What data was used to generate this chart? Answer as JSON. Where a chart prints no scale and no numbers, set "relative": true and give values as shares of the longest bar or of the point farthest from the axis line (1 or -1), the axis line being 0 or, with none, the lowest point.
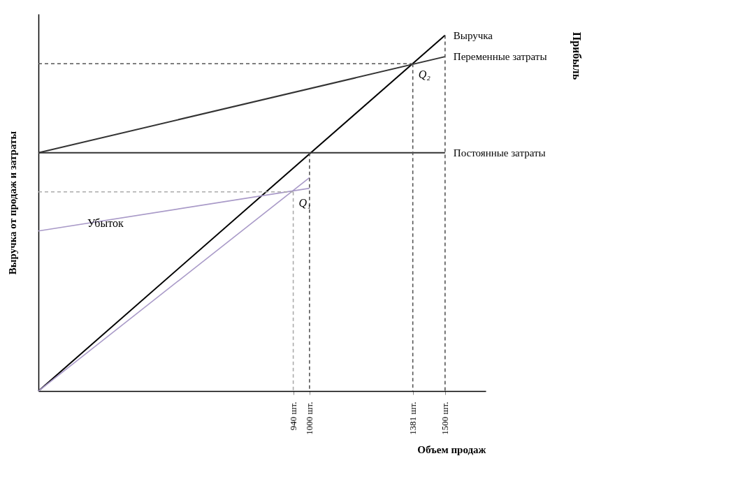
{
  "chart_data": {
    "type": "line",
    "relative": true,
    "xlabel": "Объем продаж",
    "ylabel": "Выручка от продаж и затраты",
    "xlim": [
      0,
      1650
    ],
    "xticks": [
      {
        "value": 940,
        "label": "940 шт."
      },
      {
        "value": 1000,
        "label": "1000 шт."
      },
      {
        "value": 1381,
        "label": "1381 шт."
      },
      {
        "value": 1500,
        "label": "1500 шт."
      }
    ],
    "grid": false,
    "marker": "none",
    "series": [
      {
        "name": "Выручка",
        "color": "#000000",
        "x": [
          0,
          1500
        ],
        "values": [
          0,
          1
        ]
      },
      {
        "name": "Переменные затраты",
        "color": "#333333",
        "x": [
          0,
          1500
        ],
        "values": [
          0.67,
          0.94
        ]
      },
      {
        "name": "Постоянные затраты",
        "color": "#333333",
        "x": [
          0,
          1500
        ],
        "values": [
          0.67,
          0.67
        ]
      },
      {
        "color": "#a99ac8",
        "x": [
          0,
          1000
        ],
        "values": [
          0,
          0.6
        ]
      },
      {
        "color": "#a99ac8",
        "x": [
          0,
          1000
        ],
        "values": [
          0.45,
          0.57
        ]
      },
      {
        "color": "#555555",
        "line_style": "dashed",
        "x": [
          0,
          1381
        ],
        "values": [
          0.92,
          0.92
        ]
      },
      {
        "color": "#555555",
        "line_style": "dashed",
        "x": [
          1381,
          1381
        ],
        "values": [
          0.92,
          0
        ]
      },
      {
        "color": "#555555",
        "line_style": "dashed",
        "x": [
          1000,
          1000
        ],
        "values": [
          0.67,
          0
        ]
      },
      {
        "color": "#555555",
        "line_style": "dashed",
        "x": [
          1500,
          1500
        ],
        "values": [
          1,
          0
        ]
      },
      {
        "color": "#aaaaaa",
        "line_style": "dashed",
        "x": [
          0,
          940
        ],
        "values": [
          0.56,
          0.56
        ]
      },
      {
        "color": "#aaaaaa",
        "line_style": "dashed",
        "x": [
          940,
          940
        ],
        "values": [
          0.56,
          0
        ]
      }
    ],
    "annotations": [
      "Убыток",
      "Прибыль",
      {
        "text": "Q₁",
        "x": 940,
        "y": 0.56
      },
      {
        "text": "Q₂",
        "x": 1381,
        "y": 0.92
      }
    ]
  }
}
